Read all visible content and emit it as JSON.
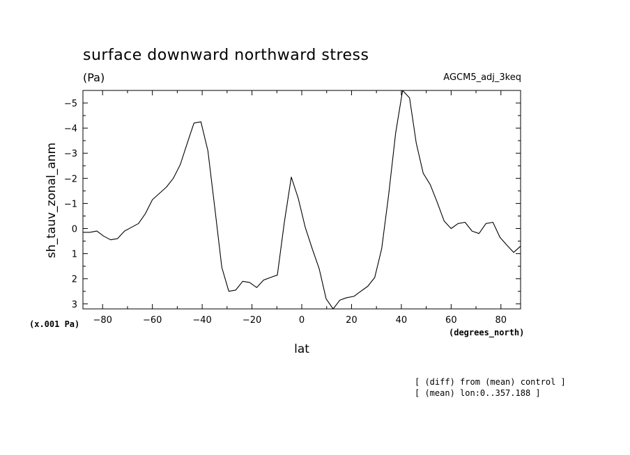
{
  "chart_data": {
    "type": "line",
    "title": "surface downward northward stress",
    "units": "(Pa)",
    "run_label": "AGCM5_adj_3keq",
    "ylabel": "sh_tauv_zonal_anm",
    "y_scale_note": "(x.001 Pa)",
    "xlabel": "lat",
    "x_units": "(degrees_north)",
    "notes": [
      "[ (diff) from (mean) control ]",
      "[ (mean) lon:0..357.188 ]"
    ],
    "xlim": [
      -87.9,
      87.9
    ],
    "ylim": [
      3.2,
      -5.5
    ],
    "y_inverted": true,
    "xticks": [
      -80,
      -60,
      -40,
      -20,
      0,
      20,
      40,
      60,
      80
    ],
    "xtick_labels": [
      "−80",
      "−60",
      "−40",
      "−20",
      "0",
      "20",
      "40",
      "60",
      "80"
    ],
    "yticks": [
      -5,
      -4,
      -3,
      -2,
      -1,
      0,
      1,
      2,
      3
    ],
    "ytick_labels": [
      "−5",
      "−4",
      "−3",
      "−2",
      "−1",
      "0",
      "1",
      "2",
      "3"
    ],
    "grid": false,
    "series": [
      {
        "x": [
          -87.9,
          -85.1,
          -82.3,
          -79.6,
          -76.8,
          -74.0,
          -71.2,
          -68.4,
          -65.6,
          -62.8,
          -60.0,
          -57.2,
          -54.4,
          -51.6,
          -48.8,
          -46.0,
          -43.3,
          -40.5,
          -37.7,
          -34.9,
          -32.1,
          -29.3,
          -26.5,
          -23.7,
          -20.9,
          -18.1,
          -15.3,
          -12.6,
          -9.8,
          -7.0,
          -4.2,
          -1.4,
          1.4,
          4.2,
          7.0,
          9.8,
          12.6,
          15.3,
          18.1,
          20.9,
          23.7,
          26.5,
          29.3,
          32.1,
          34.9,
          37.7,
          40.5,
          43.3,
          46.0,
          48.8,
          51.6,
          54.4,
          57.2,
          60.0,
          62.8,
          65.6,
          68.4,
          71.2,
          74.0,
          76.8,
          79.6,
          82.3,
          85.1,
          87.9
        ],
        "y": [
          0.15,
          0.15,
          0.1,
          0.3,
          0.45,
          0.4,
          0.1,
          -0.05,
          -0.2,
          -0.6,
          -1.15,
          -1.4,
          -1.65,
          -2.0,
          -2.55,
          -3.4,
          -4.2,
          -4.25,
          -3.1,
          -0.8,
          1.55,
          2.5,
          2.45,
          2.1,
          2.15,
          2.35,
          2.05,
          1.95,
          1.85,
          -0.25,
          -2.05,
          -1.2,
          -0.05,
          0.8,
          1.6,
          2.8,
          3.2,
          2.85,
          2.75,
          2.7,
          2.5,
          2.3,
          1.95,
          0.8,
          -1.35,
          -3.8,
          -5.5,
          -5.2,
          -3.4,
          -2.2,
          -1.75,
          -1.05,
          -0.3,
          0.0,
          -0.2,
          -0.25,
          0.1,
          0.2,
          -0.2,
          -0.25,
          0.35,
          0.65,
          0.95,
          0.7
        ]
      }
    ]
  }
}
